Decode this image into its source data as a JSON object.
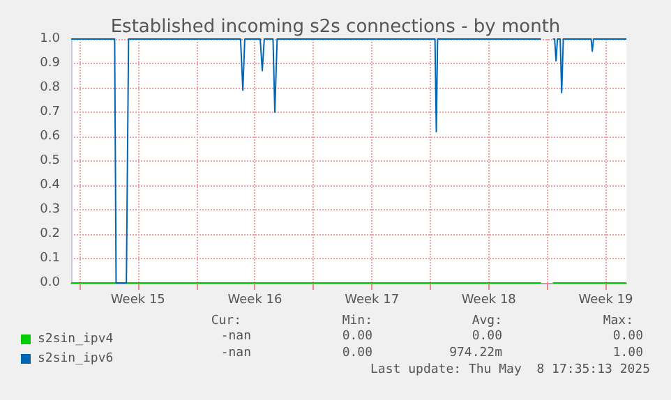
{
  "chart_data": {
    "type": "line",
    "title": "Established incoming s2s connections - by month",
    "xlim": [
      "2025-04-05T12:00",
      "2025-05-08T17:35"
    ],
    "xticks": [
      {
        "value": "2025-04-06T00:00",
        "label": null
      },
      {
        "value": "2025-04-09T12:00",
        "label": "Week 15"
      },
      {
        "value": "2025-04-13T00:00",
        "label": null
      },
      {
        "value": "2025-04-16T12:00",
        "label": "Week 16"
      },
      {
        "value": "2025-04-20T00:00",
        "label": null
      },
      {
        "value": "2025-04-23T12:00",
        "label": "Week 17"
      },
      {
        "value": "2025-04-27T00:00",
        "label": null
      },
      {
        "value": "2025-04-30T12:00",
        "label": "Week 18"
      },
      {
        "value": "2025-05-04T00:00",
        "label": null
      },
      {
        "value": "2025-05-07T12:00",
        "label": "Week 19"
      }
    ],
    "ylim": [
      0,
      1
    ],
    "yticks": [
      {
        "value": 0,
        "label": "0.0"
      },
      {
        "value": 0.1,
        "label": "0.1"
      },
      {
        "value": 0.2,
        "label": "0.2"
      },
      {
        "value": 0.3,
        "label": "0.3"
      },
      {
        "value": 0.4,
        "label": "0.4"
      },
      {
        "value": 0.5,
        "label": "0.5"
      },
      {
        "value": 0.6,
        "label": "0.6"
      },
      {
        "value": 0.7,
        "label": "0.7"
      },
      {
        "value": 0.8,
        "label": "0.8"
      },
      {
        "value": 0.9,
        "label": "0.9"
      },
      {
        "value": 1,
        "label": "1.0"
      }
    ],
    "grid": true,
    "legend": "bottom left",
    "marker": "none",
    "series": [
      {
        "name": "s2sin_ipv4",
        "color": "#00cc00",
        "x": [
          "2025-04-05T12:00",
          "2025-05-03T14:55",
          "2025-05-03T15:35",
          "2025-05-04T08:05",
          "2025-05-08T17:35"
        ],
        "values": [
          0,
          0,
          null,
          0,
          0
        ]
      },
      {
        "name": "s2sin_ipv6",
        "color": "#0066b3",
        "x": [
          "2025-04-05T12:00",
          "2025-04-08T02:30",
          "2025-04-08T04:35",
          "2025-04-08T19:20",
          "2025-04-08T22:30",
          "2025-04-15T15:20",
          "2025-04-15T18:40",
          "2025-04-15T21:25",
          "2025-04-16T19:35",
          "2025-04-16T22:35",
          "2025-04-17T01:25",
          "2025-04-17T14:00",
          "2025-04-17T16:35",
          "2025-04-17T19:55",
          "2025-04-27T06:40",
          "2025-04-27T08:35",
          "2025-04-27T10:25",
          "2025-05-03T14:55",
          "2025-05-03T15:35",
          "2025-05-04T08:05",
          "2025-05-04T10:35",
          "2025-05-04T12:35",
          "2025-05-04T14:35",
          "2025-05-04T18:30",
          "2025-05-04T20:40",
          "2025-05-04T23:00",
          "2025-05-06T15:00",
          "2025-05-06T16:40",
          "2025-05-06T18:25",
          "2025-05-08T17:35"
        ],
        "values": [
          1,
          1,
          0,
          0,
          1,
          1,
          0.79,
          1,
          1,
          0.87,
          1,
          1,
          0.7,
          1,
          1,
          0.62,
          1,
          1,
          null,
          1,
          1,
          0.91,
          1,
          1,
          0.78,
          1,
          1,
          0.95,
          1,
          1
        ]
      }
    ],
    "annotations": [
      "Cur:",
      "Min:",
      "Avg:",
      "Max:",
      "-nan",
      "0.00",
      "0.00",
      "0.00",
      "-nan",
      "0.00",
      "974.22m",
      "1.00",
      "Last update: Thu May  8 17:35:13 2025"
    ]
  }
}
